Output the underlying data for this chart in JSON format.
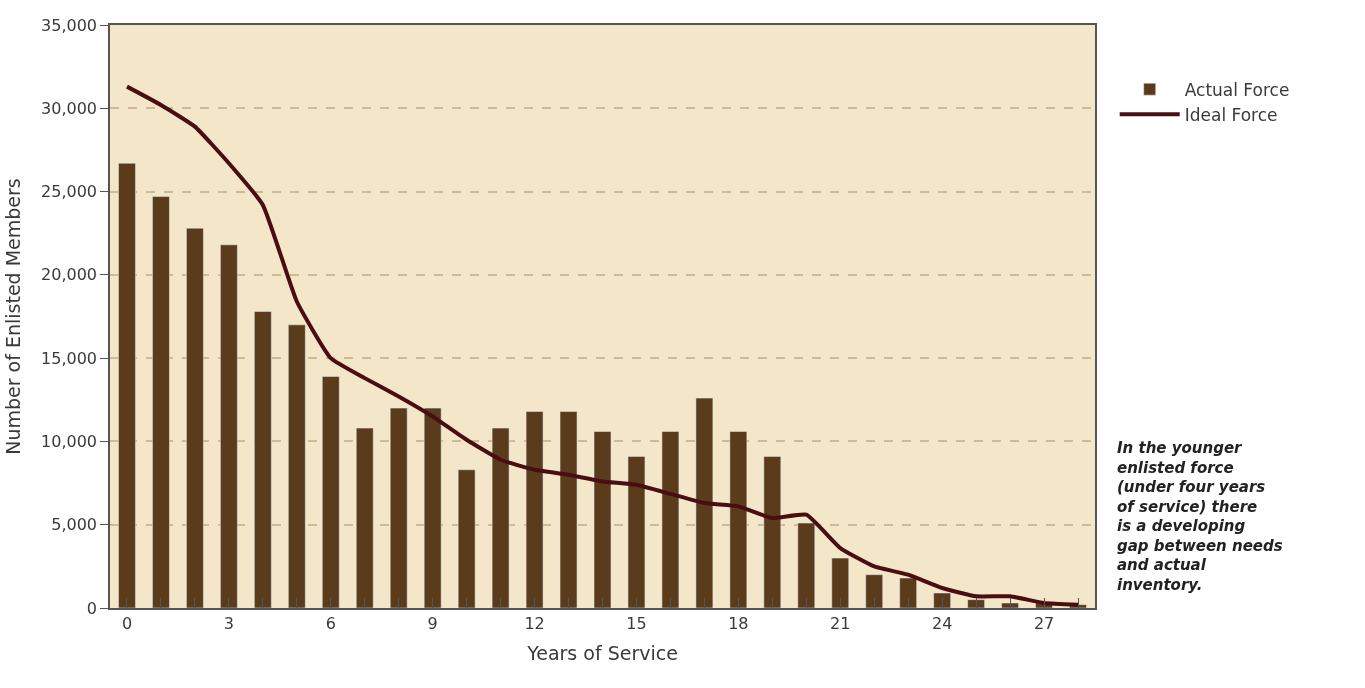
{
  "chart_data": {
    "type": "bar",
    "xlabel": "Years of Service",
    "ylabel": "Number of Enlisted Members",
    "x": [
      0,
      1,
      2,
      3,
      4,
      5,
      6,
      7,
      8,
      9,
      10,
      11,
      12,
      13,
      14,
      15,
      16,
      17,
      18,
      19,
      20,
      21,
      22,
      23,
      24,
      25,
      26,
      27,
      28
    ],
    "series": [
      {
        "name": "Actual Force",
        "color": "#5a3b1c",
        "values": [
          26700,
          24700,
          22800,
          21800,
          17800,
          17000,
          13900,
          10800,
          12000,
          12000,
          8300,
          10800,
          11800,
          11800,
          10600,
          9100,
          10600,
          12600,
          10600,
          9100,
          5100,
          3000,
          2000,
          1800,
          900,
          500,
          300,
          300,
          200
        ]
      },
      {
        "name": "Ideal Force",
        "type": "line",
        "color": "#4a0e12",
        "line_style": "solid",
        "values": [
          31300,
          30200,
          28900,
          26700,
          24200,
          18400,
          15000,
          13800,
          12700,
          11500,
          10100,
          8900,
          8300,
          8000,
          7600,
          7400,
          6850,
          6300,
          6100,
          5400,
          5600,
          3600,
          2500,
          2000,
          1200,
          700,
          700,
          300,
          200
        ]
      }
    ],
    "xlim": [
      -0.5,
      28.5
    ],
    "xticks": [
      0,
      {
        "value": 1,
        "label": null
      },
      {
        "value": 2,
        "label": null
      },
      3,
      {
        "value": 4,
        "label": null
      },
      {
        "value": 5,
        "label": null
      },
      6,
      {
        "value": 7,
        "label": null
      },
      {
        "value": 8,
        "label": null
      },
      9,
      {
        "value": 10,
        "label": null
      },
      {
        "value": 11,
        "label": null
      },
      12,
      {
        "value": 13,
        "label": null
      },
      {
        "value": 14,
        "label": null
      },
      15,
      {
        "value": 16,
        "label": null
      },
      {
        "value": 17,
        "label": null
      },
      18,
      {
        "value": 19,
        "label": null
      },
      {
        "value": 20,
        "label": null
      },
      21,
      {
        "value": 22,
        "label": null
      },
      {
        "value": 23,
        "label": null
      },
      24,
      {
        "value": 25,
        "label": null
      },
      {
        "value": 26,
        "label": null
      },
      27,
      {
        "value": 28,
        "label": null
      }
    ],
    "ylim": [
      0,
      35000
    ],
    "yticks": [
      {
        "value": 0,
        "label": "0"
      },
      {
        "value": 5000,
        "label": "5,000"
      },
      {
        "value": 10000,
        "label": "10,000"
      },
      {
        "value": 15000,
        "label": "15,000"
      },
      {
        "value": 20000,
        "label": "20,000"
      },
      {
        "value": 25000,
        "label": "25,000"
      },
      {
        "value": 30000,
        "label": "30,000"
      },
      {
        "value": 35000,
        "label": "35,000"
      }
    ],
    "grid": "y",
    "legend": "right",
    "annotations": [
      "In the younger enlisted force (under four years of service) there is a developing gap between needs and actual inventory."
    ]
  }
}
